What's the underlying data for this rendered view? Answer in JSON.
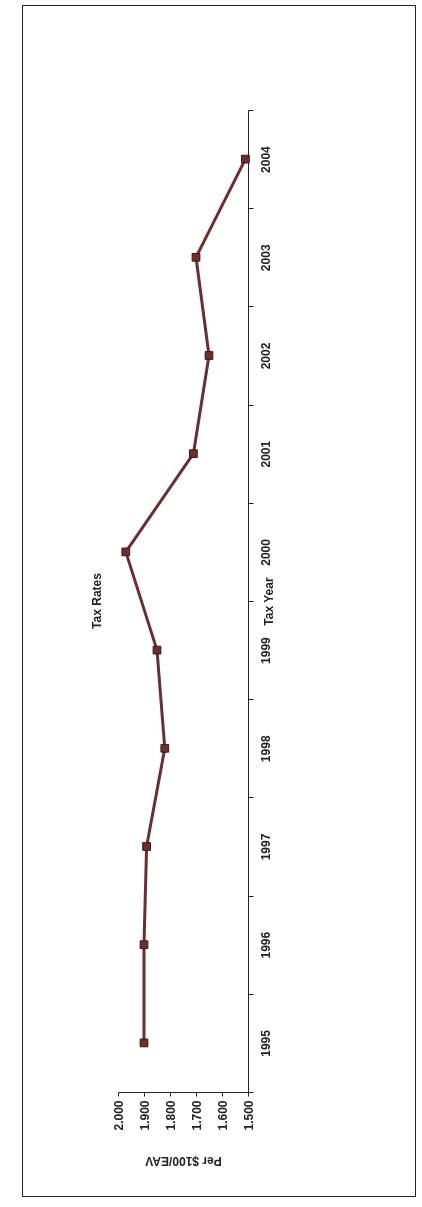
{
  "chart_data": {
    "type": "line",
    "orientation": "horizontal",
    "title": "Tax Rates",
    "xlabel": "Per $100/EAV",
    "ylabel": "Tax Year",
    "categories": [
      "2004",
      "2003",
      "2002",
      "2001",
      "2000",
      "1999",
      "1998",
      "1997",
      "1996",
      "1995"
    ],
    "series": [
      {
        "color": "#6b2f2f",
        "values": [
          1.51,
          1.7,
          1.65,
          1.71,
          1.97,
          1.85,
          1.82,
          1.89,
          1.9,
          1.9
        ]
      }
    ],
    "xlim": [
      2.0,
      1.5
    ],
    "xticks": [
      {
        "value": 2.0,
        "label": "2.000"
      },
      {
        "value": 1.9,
        "label": "1.900"
      },
      {
        "value": 1.8,
        "label": "1.800"
      },
      {
        "value": 1.7,
        "label": "1.700"
      },
      {
        "value": 1.6,
        "label": "1.600"
      },
      {
        "value": 1.5,
        "label": "1.500"
      }
    ],
    "marker": "square",
    "line_style": "solid"
  }
}
